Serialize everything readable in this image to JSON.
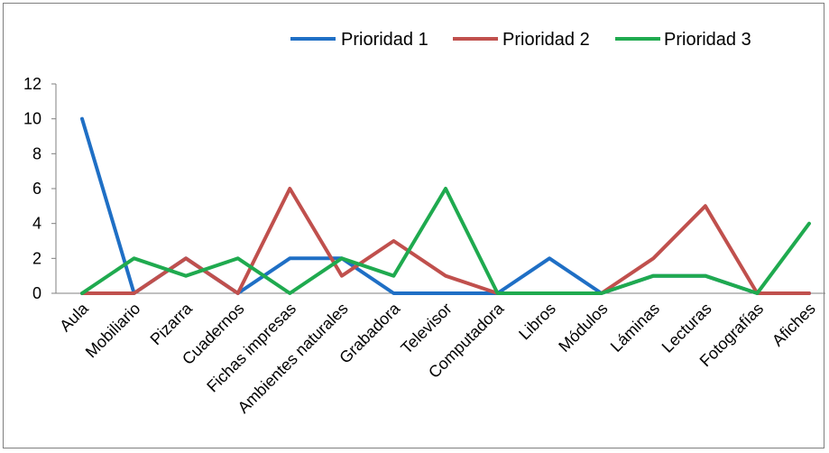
{
  "chart_data": {
    "type": "line",
    "categories": [
      "Aula",
      "Mobiliario",
      "Pizarra",
      "Cuadernos",
      "Fichas impresas",
      "Ambientes naturales",
      "Grabadora",
      "Televisor",
      "Computadora",
      "Libros",
      "Módulos",
      "Láminas",
      "Lecturas",
      "Fotografías",
      "Afiches"
    ],
    "series": [
      {
        "name": "Prioridad 1",
        "color": "#1f6fc5",
        "values": [
          10,
          0,
          2,
          0,
          2,
          2,
          0,
          0,
          0,
          2,
          0,
          1,
          1,
          0,
          0
        ]
      },
      {
        "name": "Prioridad 2",
        "color": "#c0504d",
        "values": [
          0,
          0,
          2,
          0,
          6,
          1,
          3,
          1,
          0,
          0,
          0,
          2,
          5,
          0,
          0
        ]
      },
      {
        "name": "Prioridad 3",
        "color": "#1faa4f",
        "values": [
          0,
          2,
          1,
          2,
          0,
          2,
          1,
          6,
          0,
          0,
          0,
          1,
          1,
          0,
          4
        ]
      }
    ],
    "y_ticks": [
      "0",
      "2",
      "4",
      "6",
      "8",
      "10",
      "12"
    ],
    "ylim": [
      0,
      12
    ],
    "legend_position": "top",
    "grid": false
  }
}
